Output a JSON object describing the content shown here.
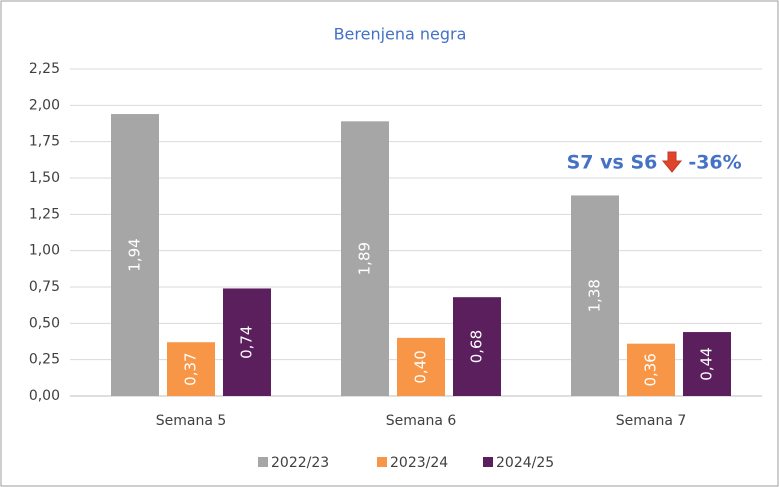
{
  "chart_data": {
    "type": "bar",
    "title": "Berenjena negra",
    "categories": [
      "Semana 5",
      "Semana 6",
      "Semana 7"
    ],
    "series": [
      {
        "name": "2022/23",
        "color": "#a6a6a6",
        "values": [
          1.94,
          1.89,
          1.38
        ],
        "value_labels": [
          "1,94",
          "1,89",
          "1,38"
        ]
      },
      {
        "name": "2023/24",
        "color": "#f79646",
        "values": [
          0.37,
          0.4,
          0.36
        ],
        "value_labels": [
          "0,37",
          "0,40",
          "0,36"
        ]
      },
      {
        "name": "2024/25",
        "color": "#5b1f5e",
        "values": [
          0.74,
          0.68,
          0.44
        ],
        "value_labels": [
          "0,74",
          "0,68",
          "0,44"
        ]
      }
    ],
    "ylim": [
      0,
      2.25
    ],
    "yticks": [
      {
        "value": 0,
        "label": "0,00"
      },
      {
        "value": 0.25,
        "label": "0,25"
      },
      {
        "value": 0.5,
        "label": "0,50"
      },
      {
        "value": 0.75,
        "label": "0,75"
      },
      {
        "value": 1,
        "label": "1,00"
      },
      {
        "value": 1.25,
        "label": "1,25"
      },
      {
        "value": 1.5,
        "label": "1,50"
      },
      {
        "value": 1.75,
        "label": "1,75"
      },
      {
        "value": 2,
        "label": "2,00"
      },
      {
        "value": 2.25,
        "label": "2,25"
      }
    ],
    "grid": true,
    "legend": "bottom",
    "annotations": [
      "S7 vs S6",
      "-36%"
    ]
  }
}
